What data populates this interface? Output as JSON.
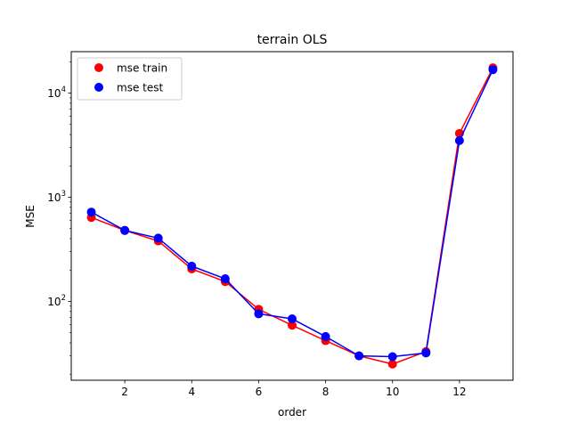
{
  "chart_data": {
    "type": "line",
    "title": "terrain OLS",
    "xlabel": "order",
    "ylabel": "MSE",
    "x": [
      1,
      2,
      3,
      4,
      5,
      6,
      7,
      8,
      9,
      10,
      11,
      12,
      13
    ],
    "series": [
      {
        "name": "mse train",
        "color": "#ff0000",
        "values": [
          640,
          480,
          380,
          205,
          155,
          84,
          59,
          42,
          30,
          25,
          33,
          4100,
          17500
        ]
      },
      {
        "name": "mse test",
        "color": "#0000ff",
        "values": [
          720,
          480,
          405,
          218,
          165,
          76,
          68,
          46,
          30,
          29.5,
          32,
          3500,
          16800
        ]
      }
    ],
    "xlim": [
      0.4,
      13.6
    ],
    "ylim": [
      17.5,
      25000
    ],
    "yscale": "log",
    "xticks": [
      2,
      4,
      6,
      8,
      10,
      12
    ],
    "xtick_labels": [
      "2",
      "4",
      "6",
      "8",
      "10",
      "12"
    ],
    "yticks": [
      100,
      1000,
      10000
    ],
    "ytick_labels": [
      "10",
      "10",
      "10"
    ],
    "ytick_exponents": [
      "2",
      "3",
      "4"
    ],
    "legend_position": "upper-left",
    "grid": false
  }
}
